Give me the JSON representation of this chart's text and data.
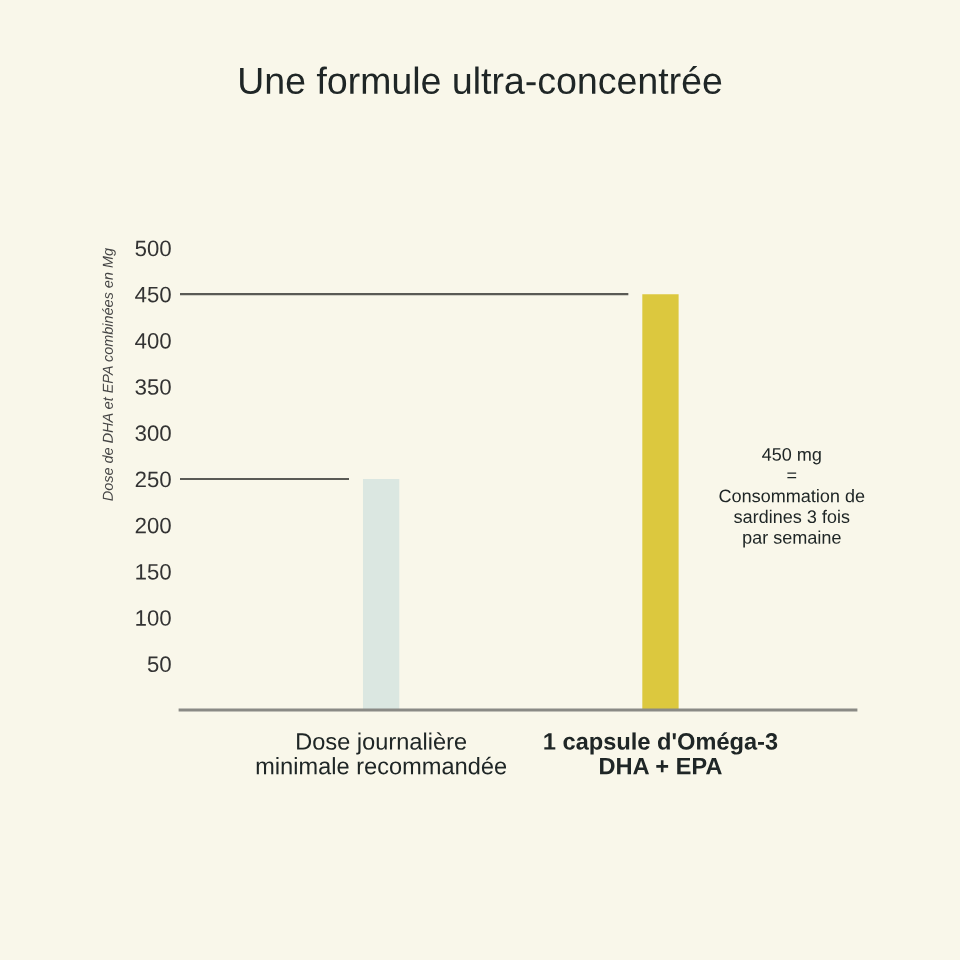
{
  "chart_data": {
    "type": "bar",
    "title": "Une formule ultra-concentrée",
    "ylabel": "Dose de DHA et EPA combinées en Mg",
    "categories": [
      "Dose journalière\nminimale recommandée",
      "1 capsule d'Oméga-3\nDHA + EPA"
    ],
    "values": [
      250,
      450
    ],
    "colors": [
      "#dbe7e1",
      "#dcc83e"
    ],
    "ylim": [
      0,
      500
    ],
    "yticks": [
      50,
      100,
      150,
      200,
      250,
      300,
      350,
      400,
      450,
      500
    ],
    "grid": false,
    "ref_lines": [
      {
        "axis": "y",
        "value": 250,
        "color": "#5a5a55"
      },
      {
        "axis": "y",
        "value": 450,
        "color": "#5a5a55"
      }
    ],
    "annotations": [
      "450 mg\n=\nConsommation de\nsardines 3 fois\npar semaine"
    ]
  }
}
